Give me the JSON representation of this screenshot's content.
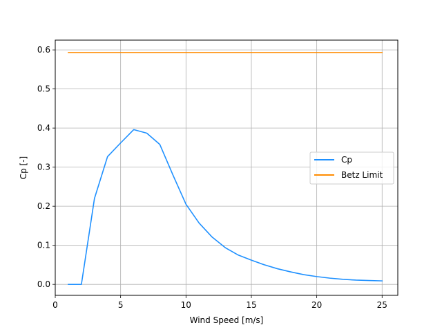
{
  "chart_data": {
    "type": "line",
    "title": "",
    "xlabel": "Wind Speed [m/s]",
    "ylabel": "Cp [-]",
    "xlim": [
      0,
      26.2
    ],
    "ylim": [
      -0.028,
      0.625
    ],
    "xticks": [
      0,
      5,
      10,
      15,
      20,
      25
    ],
    "yticks": [
      0.0,
      0.1,
      0.2,
      0.3,
      0.4,
      0.5,
      0.6
    ],
    "xtick_labels": [
      "0",
      "5",
      "10",
      "15",
      "20",
      "25"
    ],
    "ytick_labels": [
      "0.0",
      "0.1",
      "0.2",
      "0.3",
      "0.4",
      "0.5",
      "0.6"
    ],
    "grid": true,
    "legend_position": "center-right",
    "series": [
      {
        "name": "Cp",
        "color": "#1e90ff",
        "x": [
          1,
          2,
          3,
          4,
          5,
          6,
          7,
          8,
          9,
          10,
          11,
          12,
          13,
          14,
          15,
          16,
          17,
          18,
          19,
          20,
          21,
          22,
          23,
          24,
          25
        ],
        "y": [
          0.0,
          0.0,
          0.22,
          0.327,
          0.362,
          0.396,
          0.387,
          0.358,
          0.28,
          0.205,
          0.157,
          0.121,
          0.094,
          0.075,
          0.062,
          0.05,
          0.04,
          0.032,
          0.025,
          0.02,
          0.016,
          0.013,
          0.011,
          0.01,
          0.009
        ]
      },
      {
        "name": "Betz Limit",
        "color": "#ff8c00",
        "x": [
          1,
          25
        ],
        "y": [
          0.593,
          0.593
        ]
      }
    ]
  }
}
